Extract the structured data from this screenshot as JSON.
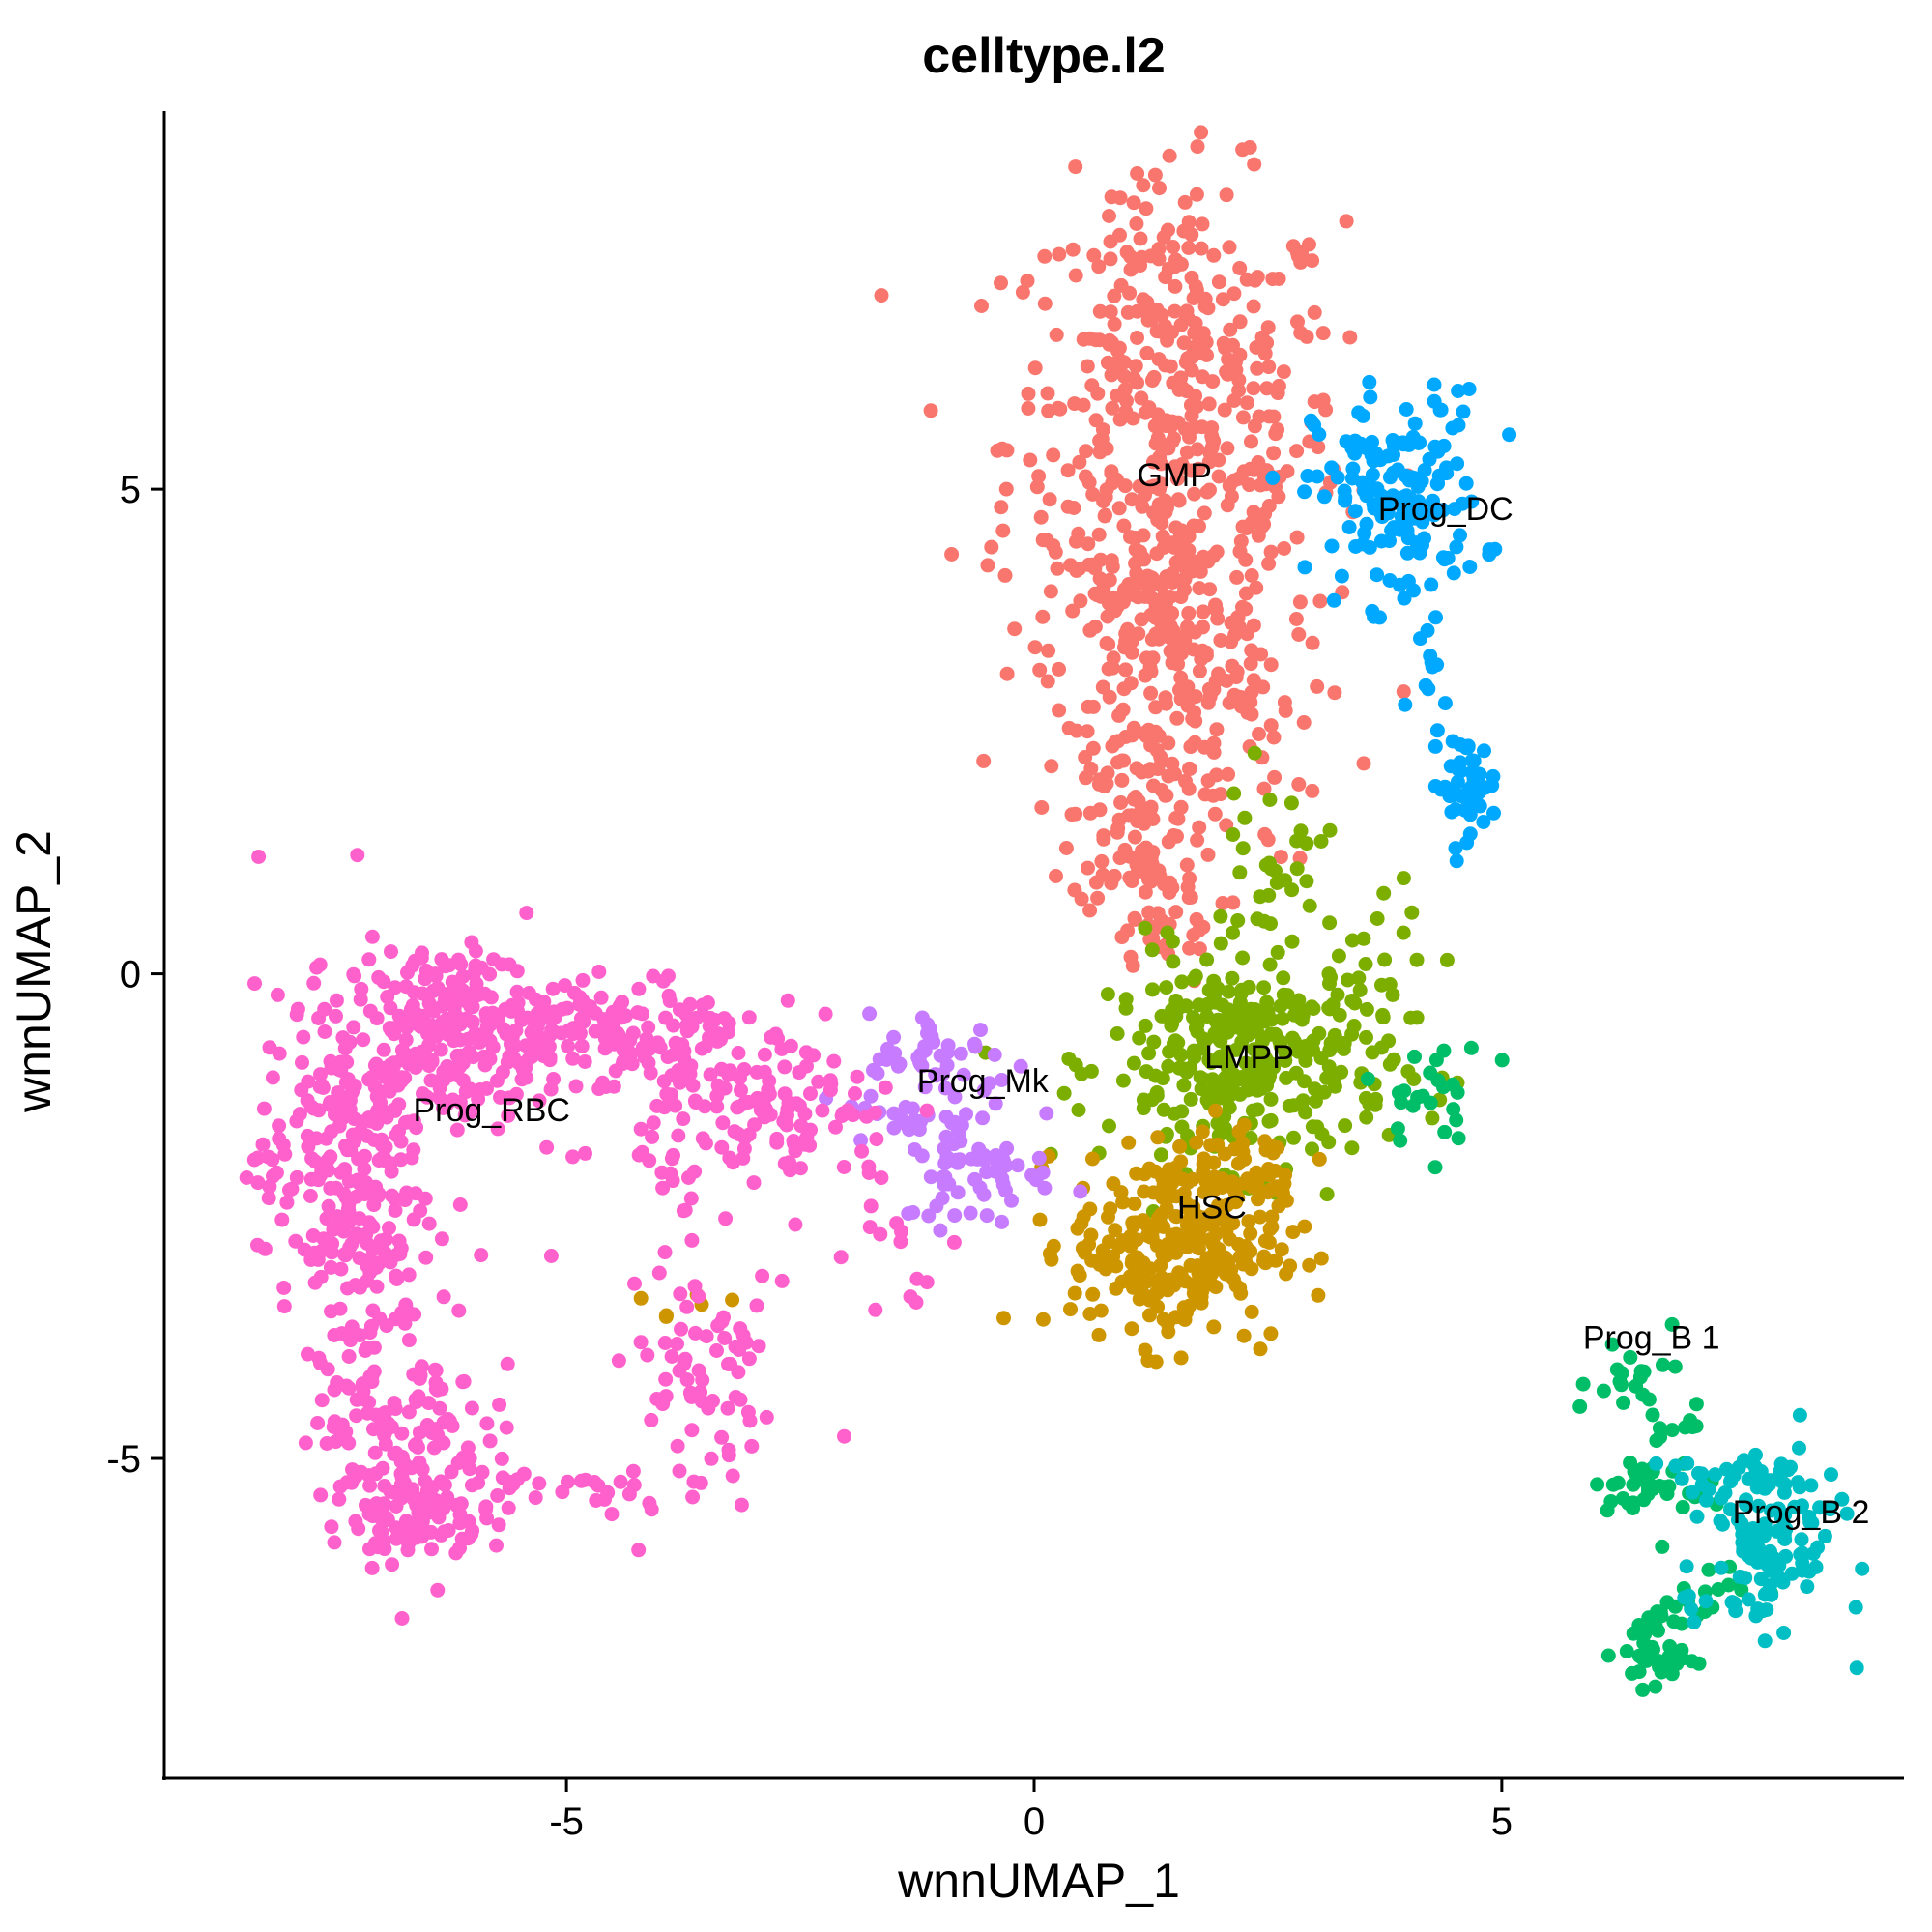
{
  "chart_data": {
    "type": "scatter",
    "title": "celltype.l2",
    "xlabel": "wnnUMAP_1",
    "ylabel": "wnnUMAP_2",
    "xlim": [
      -9.3,
      9.3
    ],
    "ylim": [
      -8.3,
      8.9
    ],
    "xticks": [
      -5,
      0,
      5
    ],
    "yticks": [
      -5,
      0,
      5
    ],
    "xtick_labels": [
      "-5",
      "0",
      "5"
    ],
    "ytick_labels": [
      "-5",
      "0",
      "5"
    ],
    "grid": false,
    "legend": "none",
    "series": [
      {
        "name": "GMP",
        "color": "#F8766D",
        "blobs": [
          {
            "cx": 1.5,
            "cy": 5.5,
            "sx": 0.9,
            "sy": 1.3,
            "n": 450
          },
          {
            "cx": 1.4,
            "cy": 3.3,
            "sx": 0.6,
            "sy": 0.8,
            "n": 200
          },
          {
            "cx": 1.1,
            "cy": 1.6,
            "sx": 0.35,
            "sy": 0.5,
            "n": 80
          },
          {
            "cx": 1.3,
            "cy": 0.6,
            "sx": 0.35,
            "sy": 0.35,
            "n": 40
          },
          {
            "cx": 2.1,
            "cy": 2.3,
            "sx": 0.5,
            "sy": 0.6,
            "n": 30
          },
          {
            "cx": 1.4,
            "cy": 7.4,
            "sx": 0.3,
            "sy": 0.4,
            "n": 25
          }
        ]
      },
      {
        "name": "Prog_DC",
        "color": "#00A9FF",
        "blobs": [
          {
            "cx": 3.9,
            "cy": 4.9,
            "sx": 0.45,
            "sy": 0.55,
            "n": 160
          },
          {
            "cx": 4.6,
            "cy": 1.95,
            "sx": 0.18,
            "sy": 0.25,
            "n": 50
          },
          {
            "cx": 4.3,
            "cy": 3.0,
            "sx": 0.15,
            "sy": 0.45,
            "n": 10
          }
        ]
      },
      {
        "name": "LMPP",
        "color": "#7CAE00",
        "blobs": [
          {
            "cx": 2.3,
            "cy": -0.9,
            "sx": 0.75,
            "sy": 0.55,
            "n": 330
          },
          {
            "cx": 2.5,
            "cy": 1.1,
            "sx": 0.3,
            "sy": 0.45,
            "n": 30
          },
          {
            "cx": 3.8,
            "cy": 0.3,
            "sx": 0.4,
            "sy": 0.5,
            "n": 20
          }
        ]
      },
      {
        "name": "HSC",
        "color": "#CD9600",
        "blobs": [
          {
            "cx": 1.5,
            "cy": -2.8,
            "sx": 0.55,
            "sy": 0.5,
            "n": 280
          },
          {
            "cx": 2.2,
            "cy": -2.0,
            "sx": 0.5,
            "sy": 0.35,
            "n": 40
          },
          {
            "cx": -3.6,
            "cy": -3.4,
            "sx": 0.3,
            "sy": 0.1,
            "n": 6
          }
        ]
      },
      {
        "name": "Prog_Mk",
        "color": "#C77CFF",
        "blobs": [
          {
            "cx": -1.0,
            "cy": -0.9,
            "sx": 0.4,
            "sy": 0.25,
            "n": 45
          },
          {
            "cx": -0.6,
            "cy": -2.0,
            "sx": 0.4,
            "sy": 0.3,
            "n": 60
          },
          {
            "cx": -1.3,
            "cy": -1.4,
            "sx": 0.4,
            "sy": 0.3,
            "n": 25
          }
        ]
      },
      {
        "name": "Prog_RBC",
        "color": "#FF61CC",
        "blobs": [
          {
            "cx": -6.3,
            "cy": -0.6,
            "sx": 0.55,
            "sy": 0.45,
            "n": 220
          },
          {
            "cx": -7.4,
            "cy": -2.0,
            "sx": 0.45,
            "sy": 0.9,
            "n": 250
          },
          {
            "cx": -6.8,
            "cy": -4.5,
            "sx": 0.45,
            "sy": 0.7,
            "n": 150
          },
          {
            "cx": -6.6,
            "cy": -5.6,
            "sx": 0.35,
            "sy": 0.25,
            "n": 80
          },
          {
            "cx": -4.5,
            "cy": -0.6,
            "sx": 0.7,
            "sy": 0.3,
            "n": 150
          },
          {
            "cx": -2.8,
            "cy": -1.5,
            "sx": 0.7,
            "sy": 0.4,
            "n": 130
          },
          {
            "cx": -3.5,
            "cy": -4.3,
            "sx": 0.4,
            "sy": 0.6,
            "n": 60
          },
          {
            "cx": -5.0,
            "cy": -5.3,
            "sx": 0.6,
            "sy": 0.15,
            "n": 30
          },
          {
            "cx": -4.5,
            "cy": -3.0,
            "sx": 1.4,
            "sy": 1.4,
            "n": 30
          },
          {
            "cx": -1.6,
            "cy": -2.6,
            "sx": 0.4,
            "sy": 0.5,
            "n": 15
          }
        ]
      },
      {
        "name": "Prog_B 1",
        "color": "#00BE67",
        "blobs": [
          {
            "cx": 6.4,
            "cy": -4.0,
            "sx": 0.4,
            "sy": 0.3,
            "n": 20
          },
          {
            "cx": 6.5,
            "cy": -5.3,
            "sx": 0.25,
            "sy": 0.1,
            "n": 35
          },
          {
            "cx": 6.7,
            "cy": -7.0,
            "sx": 0.2,
            "sy": 0.2,
            "n": 45
          },
          {
            "cx": 7.2,
            "cy": -6.3,
            "sx": 0.3,
            "sy": 0.2,
            "n": 15
          },
          {
            "cx": 4.3,
            "cy": -1.3,
            "sx": 0.3,
            "sy": 0.3,
            "n": 25
          },
          {
            "cx": 6.8,
            "cy": -4.7,
            "sx": 0.3,
            "sy": 0.15,
            "n": 10
          }
        ]
      },
      {
        "name": "Prog_B 2",
        "color": "#00BFC4",
        "blobs": [
          {
            "cx": 7.9,
            "cy": -5.8,
            "sx": 0.35,
            "sy": 0.45,
            "n": 110
          },
          {
            "cx": 7.3,
            "cy": -5.2,
            "sx": 0.4,
            "sy": 0.1,
            "n": 25
          },
          {
            "cx": 7.5,
            "cy": -6.4,
            "sx": 0.3,
            "sy": 0.15,
            "n": 15
          }
        ]
      }
    ],
    "annotations": [
      {
        "text": "GMP",
        "x": 1.5,
        "y": 5.15
      },
      {
        "text": "Prog_DC",
        "x": 4.4,
        "y": 4.8
      },
      {
        "text": "LMPP",
        "x": 2.3,
        "y": -0.85
      },
      {
        "text": "HSC",
        "x": 1.9,
        "y": -2.4
      },
      {
        "text": "Prog_Mk",
        "x": -0.55,
        "y": -1.1
      },
      {
        "text": "Prog_RBC",
        "x": -5.8,
        "y": -1.4
      },
      {
        "text": "Prog_B 1",
        "x": 6.6,
        "y": -3.75
      },
      {
        "text": "Prog_B 2",
        "x": 8.2,
        "y": -5.55
      }
    ]
  }
}
